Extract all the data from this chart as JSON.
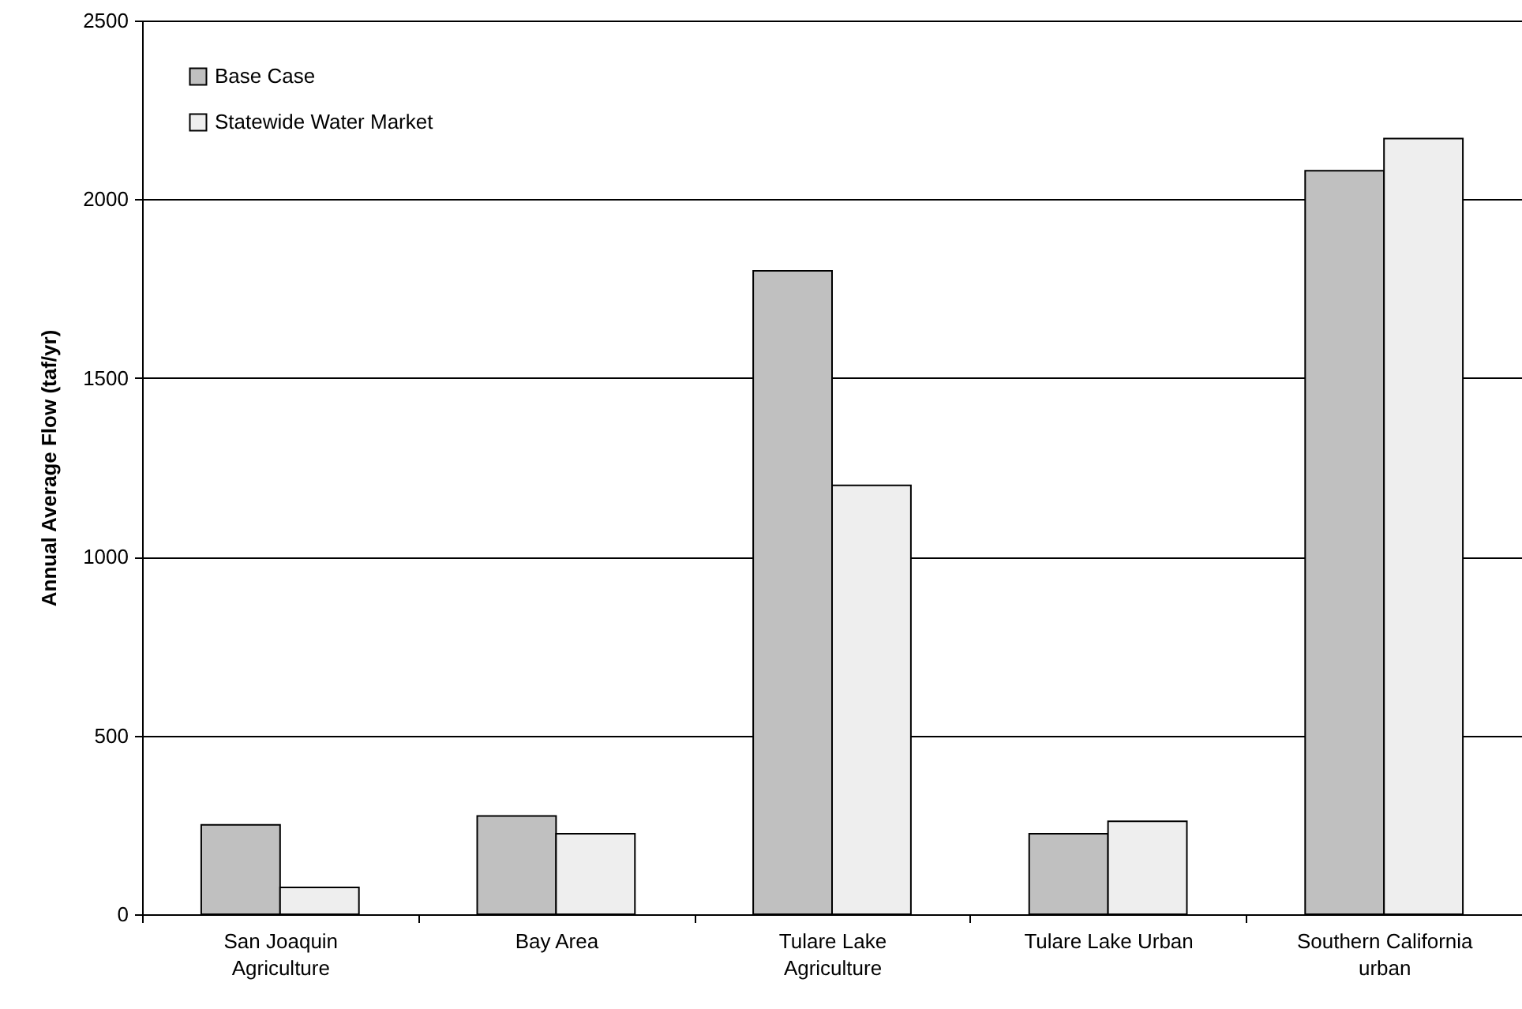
{
  "chart_data": {
    "type": "bar",
    "ylabel": "Annual Average Flow (taf/yr)",
    "categories": [
      "San Joaquin Agriculture",
      "Bay Area",
      "Tulare Lake Agriculture",
      "Tulare Lake Urban",
      "Southern California urban"
    ],
    "series": [
      {
        "name": "Base Case",
        "color": "#c0c0c0",
        "values": [
          250,
          275,
          1800,
          225,
          2080
        ]
      },
      {
        "name": "Statewide Water Market",
        "color": "#eeeeee",
        "values": [
          75,
          225,
          1200,
          260,
          2170
        ]
      }
    ],
    "ylim": [
      0,
      2500
    ],
    "yticks": [
      0,
      500,
      1000,
      1500,
      2000,
      2500
    ],
    "grid": "y",
    "legend": "top left"
  }
}
